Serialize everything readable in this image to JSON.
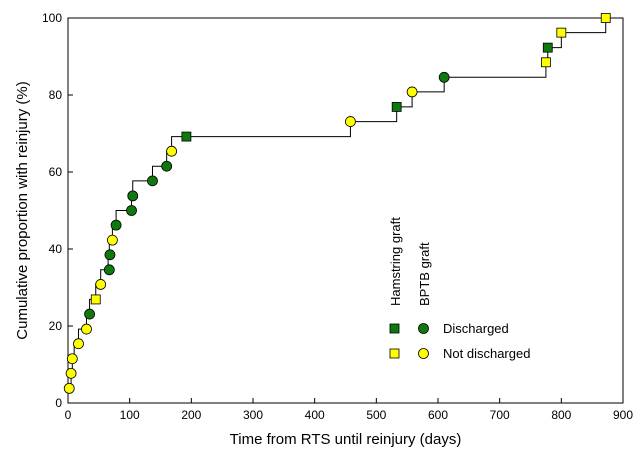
{
  "chart_data": {
    "type": "scatter",
    "title": "",
    "xlabel": "Time from RTS  until reinjury (days)",
    "ylabel": "Cumulative proportion with reinjury (%)",
    "xlim": [
      0,
      900
    ],
    "ylim": [
      0,
      100
    ],
    "xticks": [
      0,
      100,
      200,
      300,
      400,
      500,
      600,
      700,
      800,
      900
    ],
    "yticks": [
      0,
      20,
      40,
      60,
      80,
      100
    ],
    "grid": false,
    "step_line": {
      "x": [
        0,
        5,
        7,
        10,
        17,
        30,
        35,
        45,
        53,
        65,
        67,
        72,
        78,
        103,
        105,
        137,
        160,
        168,
        192,
        458,
        533,
        558,
        610,
        775,
        778,
        800,
        872
      ],
      "y": [
        3.8,
        7.7,
        11.5,
        15.4,
        19.2,
        23.1,
        26.9,
        30.8,
        34.6,
        38.5,
        42.3,
        46.2,
        50.0,
        53.8,
        57.7,
        61.5,
        65.4,
        69.2,
        69.2,
        73.1,
        76.9,
        80.8,
        84.6,
        88.5,
        92.3,
        96.2,
        100.0
      ]
    },
    "series": [
      {
        "graft": "Hamstring graft",
        "status": "Discharged",
        "marker": "square",
        "color": "#0e7a0e",
        "x": [
          192,
          533,
          778
        ],
        "y": [
          69.2,
          76.9,
          92.3
        ]
      },
      {
        "graft": "Hamstring graft",
        "status": "Not discharged",
        "marker": "square",
        "color": "#ffff00",
        "x": [
          45,
          775,
          800,
          872
        ],
        "y": [
          26.9,
          88.5,
          96.2,
          100.0
        ]
      },
      {
        "graft": "BPTB graft",
        "status": "Discharged",
        "marker": "circle",
        "color": "#0e7a0e",
        "x": [
          35,
          67,
          68,
          78,
          103,
          105,
          137,
          160,
          610
        ],
        "y": [
          23.1,
          34.6,
          38.5,
          46.2,
          50.0,
          53.8,
          57.7,
          61.5,
          84.6
        ]
      },
      {
        "graft": "BPTB graft",
        "status": "Not discharged",
        "marker": "circle",
        "color": "#ffff00",
        "x": [
          2,
          5,
          7,
          17,
          30,
          53,
          72,
          168,
          458,
          558
        ],
        "y": [
          3.8,
          7.7,
          11.5,
          15.4,
          19.2,
          30.8,
          42.3,
          65.4,
          73.1,
          80.8
        ]
      }
    ],
    "legend": {
      "placement": "lower-right",
      "column_headers": [
        "Hamstring graft",
        "BPTB graft"
      ],
      "rows": [
        "Discharged",
        "Not discharged"
      ]
    }
  },
  "colors": {
    "discharged": "#0e7a0e",
    "not_discharged": "#ffff00",
    "line": "#000000"
  }
}
